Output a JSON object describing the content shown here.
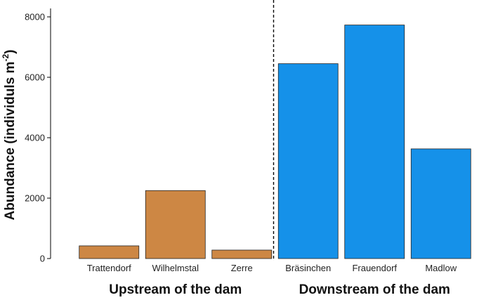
{
  "chart_data": {
    "type": "bar",
    "ylabel_main": "Abundance (individuls m",
    "ylabel_sup": "-2",
    "ylabel_end": ")",
    "ylim": [
      0,
      8000
    ],
    "yticks": [
      0,
      2000,
      4000,
      6000,
      8000
    ],
    "categories": [
      "Trattendorf",
      "Wilhelmstal",
      "Zerre",
      "Bräsinchen",
      "Frauendorf",
      "Madlow"
    ],
    "values": [
      420,
      2250,
      280,
      6450,
      7730,
      3630
    ],
    "groups": [
      {
        "label": "Upstream of the dam",
        "color": "#CD8744",
        "categories": [
          "Trattendorf",
          "Wilhelmstal",
          "Zerre"
        ]
      },
      {
        "label": "Downstream of the dam",
        "color": "#1591E9",
        "categories": [
          "Bräsinchen",
          "Frauendorf",
          "Madlow"
        ]
      }
    ],
    "divider": "dashed line between upstream and downstream groups"
  }
}
